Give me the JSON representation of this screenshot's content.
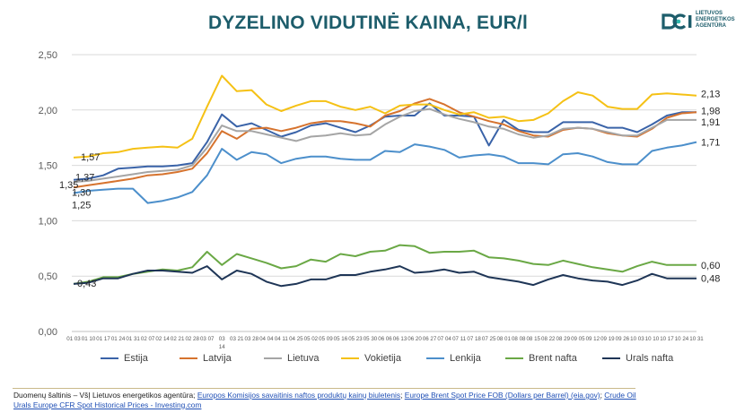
{
  "title": "DYZELINO VIDUTINĖ KAINA, EUR/l",
  "logo": {
    "lines": [
      "LIETUVOS",
      "ENERGETIKOS",
      "AGENTŪRA"
    ]
  },
  "colors": {
    "estija": "#3a63a8",
    "latvija": "#d6732e",
    "lietuva": "#a5a5a5",
    "vokietija": "#f5c115",
    "lenkija": "#4c8fcb",
    "brent": "#6aa845",
    "urals": "#1e3556",
    "title": "#1d5d6b",
    "grid": "#d9d9d9"
  },
  "footer": {
    "prefix": "Duomenų šaltinis – VšĮ Lietuvos energetikos agentūra; ",
    "link1": "Europos Komisijos savaitinis naftos produktų kainų biuletenis",
    "sep1": "; ",
    "link2": "Europe Brent Spot Price FOB (Dollars per Barrel) (eia.gov)",
    "sep2": "; ",
    "link3": "Crude Oil Urals Europe CFR Spot Historical Prices - Investing.com"
  },
  "chart_data": {
    "type": "line",
    "title": "DYZELINO VIDUTINĖ KAINA, EUR/l",
    "xlabel": "",
    "ylabel": "",
    "ylim": [
      0,
      2.5
    ],
    "yticks": [
      "0,00",
      "0,50",
      "1,00",
      "1,50",
      "2,00",
      "2,50"
    ],
    "grid": true,
    "legend_position": "bottom",
    "categories": [
      "01 03",
      "01 10",
      "01 17",
      "01 24",
      "01 31",
      "02 07",
      "02 14",
      "02 21",
      "02 28",
      "03 07",
      "03 14",
      "03 21",
      "03 28",
      "04 04",
      "04 11",
      "04 25",
      "05 02",
      "05 09",
      "05 16",
      "05 23",
      "05 30",
      "06 06",
      "06 13",
      "06 20",
      "06 27",
      "07 04",
      "07 11",
      "07 18",
      "07 25",
      "08 01",
      "08 08",
      "08 15",
      "08 22",
      "08 29",
      "09 05",
      "09 12",
      "09 19",
      "09 26",
      "10 03",
      "10 10",
      "10 17",
      "10 24",
      "10 31"
    ],
    "x_tick_labels": [
      "01 03",
      "01 10",
      "01 17",
      "01 24",
      "01 31",
      "02 07",
      "02 14",
      "02 21",
      "02 28",
      "03 07",
      "03\n14",
      "03 21",
      "03 28",
      "04 04",
      "04 11",
      "04 25",
      "05 02",
      "05 09",
      "05 16",
      "05 23",
      "05 30",
      "06 06",
      "06 13",
      "06 20",
      "06 27",
      "07 04",
      "07 11",
      "07 18",
      "07 25",
      "08 01",
      "08 08",
      "08 15",
      "08 22",
      "08 29",
      "09 05",
      "09 12",
      "09 19",
      "09 26",
      "10 03",
      "10 10",
      "10 17",
      "10 24",
      "10 31"
    ],
    "series": [
      {
        "name": "Estija",
        "color": "#3a63a8",
        "values": [
          1.37,
          1.38,
          1.41,
          1.47,
          1.48,
          1.49,
          1.49,
          1.5,
          1.52,
          1.71,
          1.96,
          1.85,
          1.88,
          1.82,
          1.76,
          1.8,
          1.86,
          1.88,
          1.84,
          1.8,
          1.86,
          1.94,
          1.95,
          1.95,
          2.06,
          1.95,
          1.95,
          1.94,
          1.68,
          1.91,
          1.82,
          1.8,
          1.8,
          1.89,
          1.89,
          1.89,
          1.84,
          1.84,
          1.8,
          1.87,
          1.95,
          1.98,
          1.98
        ]
      },
      {
        "name": "Latvija",
        "color": "#d6732e",
        "values": [
          1.3,
          1.32,
          1.34,
          1.36,
          1.38,
          1.41,
          1.42,
          1.44,
          1.47,
          1.61,
          1.81,
          1.74,
          1.83,
          1.84,
          1.81,
          1.84,
          1.88,
          1.9,
          1.9,
          1.88,
          1.85,
          1.95,
          1.99,
          2.06,
          2.1,
          2.05,
          1.98,
          1.94,
          1.9,
          1.87,
          1.81,
          1.77,
          1.76,
          1.82,
          1.84,
          1.83,
          1.79,
          1.77,
          1.76,
          1.83,
          1.93,
          1.97,
          1.98
        ]
      },
      {
        "name": "Lietuva",
        "color": "#a5a5a5",
        "values": [
          1.35,
          1.36,
          1.38,
          1.4,
          1.42,
          1.44,
          1.45,
          1.46,
          1.5,
          1.66,
          1.86,
          1.81,
          1.81,
          1.78,
          1.75,
          1.72,
          1.76,
          1.77,
          1.79,
          1.77,
          1.78,
          1.87,
          1.94,
          1.99,
          2.01,
          1.96,
          1.92,
          1.89,
          1.85,
          1.83,
          1.78,
          1.75,
          1.77,
          1.83,
          1.84,
          1.83,
          1.8,
          1.77,
          1.77,
          1.84,
          1.91,
          1.91,
          1.91
        ]
      },
      {
        "name": "Vokietija",
        "color": "#f5c115",
        "values": [
          1.57,
          1.58,
          1.61,
          1.62,
          1.65,
          1.66,
          1.67,
          1.66,
          1.74,
          2.03,
          2.31,
          2.17,
          2.18,
          2.05,
          1.99,
          2.04,
          2.08,
          2.08,
          2.03,
          2.0,
          2.03,
          1.97,
          2.04,
          2.05,
          2.05,
          2.0,
          1.96,
          1.98,
          1.93,
          1.94,
          1.9,
          1.91,
          1.97,
          2.08,
          2.16,
          2.13,
          2.03,
          2.01,
          2.01,
          2.14,
          2.15,
          2.14,
          2.13
        ]
      },
      {
        "name": "Lenkija",
        "color": "#4c8fcb",
        "values": [
          1.25,
          1.27,
          1.28,
          1.29,
          1.29,
          1.16,
          1.18,
          1.21,
          1.26,
          1.41,
          1.65,
          1.55,
          1.62,
          1.6,
          1.52,
          1.56,
          1.58,
          1.58,
          1.56,
          1.55,
          1.55,
          1.63,
          1.62,
          1.69,
          1.67,
          1.64,
          1.57,
          1.59,
          1.6,
          1.58,
          1.52,
          1.52,
          1.51,
          1.6,
          1.61,
          1.58,
          1.53,
          1.51,
          1.51,
          1.63,
          1.66,
          1.68,
          1.71
        ]
      },
      {
        "name": "Brent nafta",
        "color": "#6aa845",
        "values": [
          0.43,
          0.45,
          0.49,
          0.49,
          0.52,
          0.54,
          0.56,
          0.55,
          0.58,
          0.72,
          0.6,
          0.7,
          0.66,
          0.62,
          0.57,
          0.59,
          0.65,
          0.63,
          0.7,
          0.68,
          0.72,
          0.73,
          0.78,
          0.77,
          0.71,
          0.72,
          0.72,
          0.73,
          0.67,
          0.66,
          0.64,
          0.61,
          0.6,
          0.64,
          0.61,
          0.58,
          0.56,
          0.54,
          0.59,
          0.63,
          0.6,
          0.6,
          0.6
        ]
      },
      {
        "name": "Urals nafta",
        "color": "#1e3556",
        "values": [
          0.43,
          0.44,
          0.48,
          0.48,
          0.52,
          0.55,
          0.55,
          0.54,
          0.53,
          0.59,
          0.47,
          0.55,
          0.52,
          0.45,
          0.41,
          0.43,
          0.47,
          0.47,
          0.51,
          0.51,
          0.54,
          0.56,
          0.59,
          0.53,
          0.54,
          0.56,
          0.53,
          0.54,
          0.49,
          0.47,
          0.45,
          0.42,
          0.47,
          0.51,
          0.48,
          0.46,
          0.45,
          0.42,
          0.46,
          0.52,
          0.48,
          0.48,
          0.48
        ]
      }
    ],
    "data_labels": [
      {
        "series": "Vokietija",
        "position": "start",
        "text": "1,57"
      },
      {
        "series": "Estija",
        "position": "start",
        "text": "1,37"
      },
      {
        "series": "Lietuva",
        "position": "start",
        "text": "1,35"
      },
      {
        "series": "Latvija",
        "position": "start",
        "text": "1,30"
      },
      {
        "series": "Lenkija",
        "position": "start",
        "text": "1,25"
      },
      {
        "series": "Brent nafta",
        "position": "start",
        "text": "0,43"
      },
      {
        "series": "Vokietija",
        "position": "end",
        "text": "2,13"
      },
      {
        "series": "Estija",
        "position": "end",
        "text": "1,98"
      },
      {
        "series": "Lietuva",
        "position": "end",
        "text": "1,91"
      },
      {
        "series": "Lenkija",
        "position": "end",
        "text": "1,71"
      },
      {
        "series": "Brent nafta",
        "position": "end",
        "text": "0,60"
      },
      {
        "series": "Urals nafta",
        "position": "end",
        "text": "0,48"
      }
    ]
  }
}
